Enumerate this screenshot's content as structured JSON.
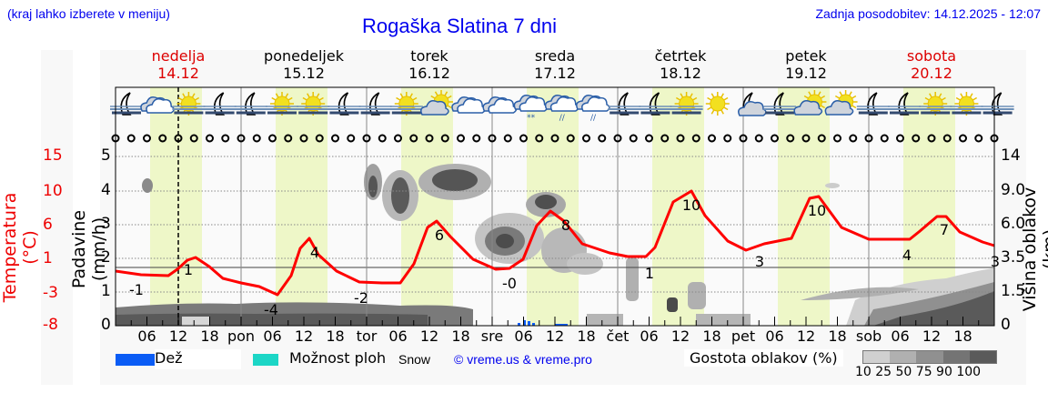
{
  "header": {
    "region_hint": "(kraj lahko izberete v meniju)",
    "title": "Rogaška Slatina 7 dni",
    "last_update": "Zadnja posodobitev: 14.12.2025 - 12:07"
  },
  "days": [
    {
      "name": "nedelja",
      "date": "14.12",
      "weekend": true
    },
    {
      "name": "ponedeljek",
      "date": "15.12",
      "weekend": false
    },
    {
      "name": "torek",
      "date": "16.12",
      "weekend": false
    },
    {
      "name": "sreda",
      "date": "17.12",
      "weekend": false
    },
    {
      "name": "četrtek",
      "date": "18.12",
      "weekend": false
    },
    {
      "name": "petek",
      "date": "19.12",
      "weekend": false
    },
    {
      "name": "sobota",
      "date": "20.12",
      "weekend": true
    }
  ],
  "axes": {
    "temperature_label": "Temperatura (°C)",
    "precip_label": "Padavine (mm/h)",
    "cloud_height_label": "Višina oblakov (km)",
    "temperature_ticks": [
      "15",
      "10",
      "6",
      "1",
      "-3",
      "-8"
    ],
    "precip_ticks": [
      "5",
      "4",
      "3",
      "2",
      "1",
      "0"
    ],
    "cloud_height_ticks": [
      "14",
      "9.0",
      "6.0",
      "3.5",
      "1.5",
      "0"
    ],
    "x_ticks": [
      "06",
      "12",
      "18",
      "pon",
      "06",
      "12",
      "18",
      "tor",
      "06",
      "12",
      "18",
      "sre",
      "06",
      "12",
      "18",
      "čet",
      "06",
      "12",
      "18",
      "pet",
      "06",
      "12",
      "18",
      "sob",
      "06",
      "12",
      "18"
    ]
  },
  "legend": {
    "rain_label": "Dež",
    "rain_color": "#0a5cf5",
    "showers_label": "Možnost ploh",
    "showers_color": "#1cd6c6",
    "snow_label": "Snow",
    "copyright": "© vreme.us & vreme.pro",
    "cloud_density_label": "Gostota oblakov (%)",
    "cloud_density_ticks": [
      "10",
      "25",
      "50",
      "75",
      "90",
      "100"
    ],
    "cloud_density_colors": [
      "#d0d0d0",
      "#b0b0b0",
      "#909090",
      "#747474",
      "#5a5a5a"
    ]
  },
  "weather_icons": [
    "moon-fog",
    "cloud",
    "sun-fog",
    "moon-fog",
    "moon-fog",
    "sun-fog",
    "sun-fog",
    "moon-fog",
    "moon-fog",
    "sun-fog",
    "sun-cloud",
    "cloud",
    "cloud",
    "cloud-snow",
    "cloud-rain",
    "cloud-rain",
    "moon-fog",
    "moon-fog",
    "sun-fog",
    "sun",
    "moon-cloud",
    "moon-fog",
    "sun-cloud",
    "sun-cloud",
    "moon-fog",
    "moon-fog",
    "sun-fog",
    "sun-fog",
    "moon-fog"
  ],
  "chart_data": {
    "type": "line",
    "title": "Rogaška Slatina 7 dni",
    "xlabel": "",
    "ylabel": "Temperatura (°C)",
    "x": [
      "14.12 00",
      "14.12 06",
      "14.12 12",
      "14.12 18",
      "15.12 00",
      "15.12 06",
      "15.12 12",
      "15.12 18",
      "16.12 00",
      "16.12 06",
      "16.12 12",
      "16.12 18",
      "17.12 00",
      "17.12 06",
      "17.12 12",
      "17.12 18",
      "18.12 00",
      "18.12 06",
      "18.12 12",
      "18.12 18",
      "19.12 00",
      "19.12 06",
      "19.12 12",
      "19.12 18",
      "20.12 00",
      "20.12 06",
      "20.12 12",
      "20.12 18",
      "21.12 00"
    ],
    "series": [
      {
        "name": "Temperatura (°C)",
        "color": "#ff0000",
        "values": [
          -0.5,
          -1,
          1,
          -1,
          -2,
          -3.5,
          4,
          -1,
          -2,
          -2,
          6,
          2,
          -0.5,
          0,
          8,
          3,
          2,
          1,
          10,
          6,
          3,
          3.5,
          10,
          5,
          4,
          4,
          7,
          4,
          3
        ]
      }
    ],
    "annotations": [
      {
        "x": "14.12 03",
        "label": "-1"
      },
      {
        "x": "14.12 14",
        "label": "1"
      },
      {
        "x": "15.12 03",
        "label": "-4"
      },
      {
        "x": "15.12 14",
        "label": "4"
      },
      {
        "x": "16.12 01",
        "label": "-2"
      },
      {
        "x": "16.12 14",
        "label": "6"
      },
      {
        "x": "17.12 01",
        "label": "-0"
      },
      {
        "x": "17.12 14",
        "label": "8"
      },
      {
        "x": "18.12 01",
        "label": "1"
      },
      {
        "x": "18.12 14",
        "label": "10"
      },
      {
        "x": "19.12 01",
        "label": "3"
      },
      {
        "x": "19.12 14",
        "label": "10"
      },
      {
        "x": "20.12 01",
        "label": "4"
      },
      {
        "x": "20.12 14",
        "label": "7"
      },
      {
        "x": "21.12 00",
        "label": "3"
      }
    ],
    "secondary": {
      "precipitation_mm_h": {
        "ylim": [
          0,
          5
        ],
        "note": "small rain bars on 17.12 around 05-14h, ~0.1-0.2 mm/h"
      },
      "cloud_height_km": {
        "ticks": [
          0,
          1.5,
          3.5,
          6.0,
          9.0,
          14
        ]
      }
    },
    "ylim": [
      -8,
      15
    ],
    "grid": true,
    "current_time_marker": "14.12 12:07"
  }
}
